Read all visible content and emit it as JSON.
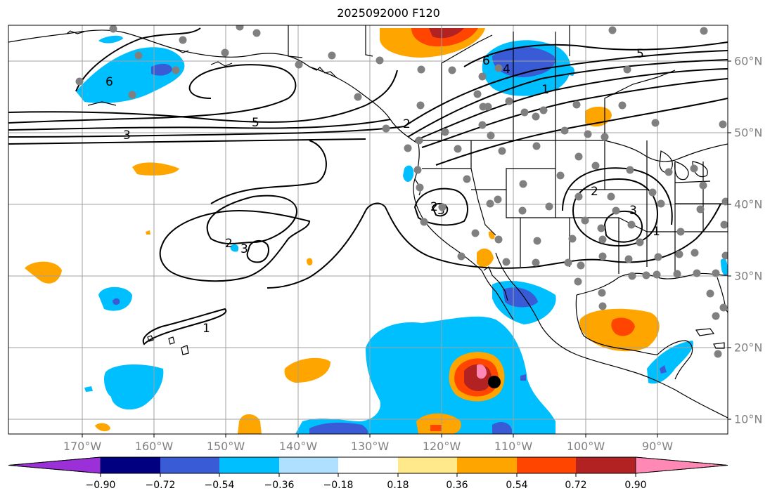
{
  "title": "2025092000 F120",
  "lon_labels": [
    "170°W",
    "160°W",
    "150°W",
    "140°W",
    "130°W",
    "120°W",
    "110°W",
    "100°W",
    "90°W"
  ],
  "lat_labels": [
    "60°N",
    "50°N",
    "40°N",
    "30°N",
    "20°N",
    "10°N"
  ],
  "colorbar": {
    "ticks": [
      "−0.90",
      "−0.72",
      "−0.54",
      "−0.36",
      "−0.18",
      "0.18",
      "0.36",
      "0.54",
      "0.72",
      "0.90"
    ],
    "colors": [
      "#9b30d9",
      "#000080",
      "#3a5bd6",
      "#00bfff",
      "#afe0ff",
      "#ffffff",
      "#ffe98a",
      "#ffa500",
      "#ff4500",
      "#b22222",
      "#ff88b4"
    ]
  },
  "contour_labels": [
    "6",
    "5",
    "3",
    "1",
    "2",
    "6",
    "4",
    "5",
    "1",
    "2",
    "3",
    "2",
    "3",
    "2",
    "3",
    "1"
  ],
  "fill_colors": {
    "light_blue": "#00bfff",
    "blue": "#3a5bd6",
    "orange": "#ffa500",
    "red_orange": "#ff4500",
    "dark_red": "#b22222",
    "pink": "#ff88b4"
  },
  "marker": "storm-center"
}
